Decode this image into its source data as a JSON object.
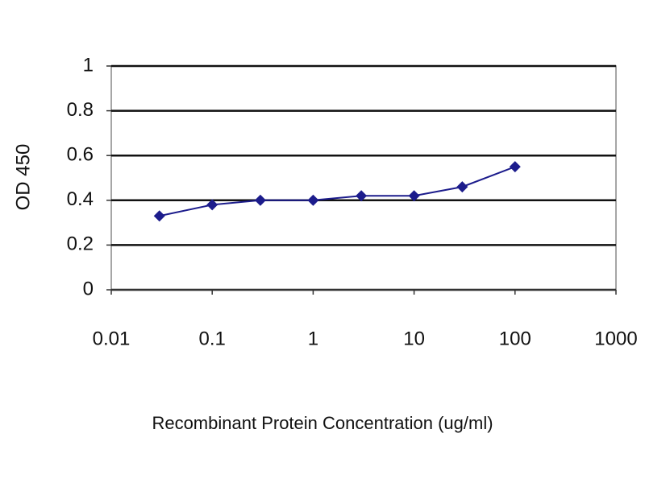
{
  "chart_data": {
    "type": "line",
    "x": [
      0.03,
      0.1,
      0.3,
      1,
      3,
      10,
      30,
      100
    ],
    "values": [
      0.33,
      0.38,
      0.4,
      0.4,
      0.42,
      0.42,
      0.46,
      0.55
    ],
    "color": "#1c1c8c",
    "xlabel": "Recombinant Protein Concentration (ug/ml)",
    "ylabel": "OD 450",
    "xlim": [
      0.01,
      1000
    ],
    "xticks": [
      0.01,
      0.1,
      1,
      10,
      100,
      1000
    ],
    "xlog": true,
    "ylim": [
      0,
      1
    ],
    "yticks": [
      0,
      0.2,
      0.4,
      0.6,
      0.8,
      1
    ],
    "grid": true
  }
}
